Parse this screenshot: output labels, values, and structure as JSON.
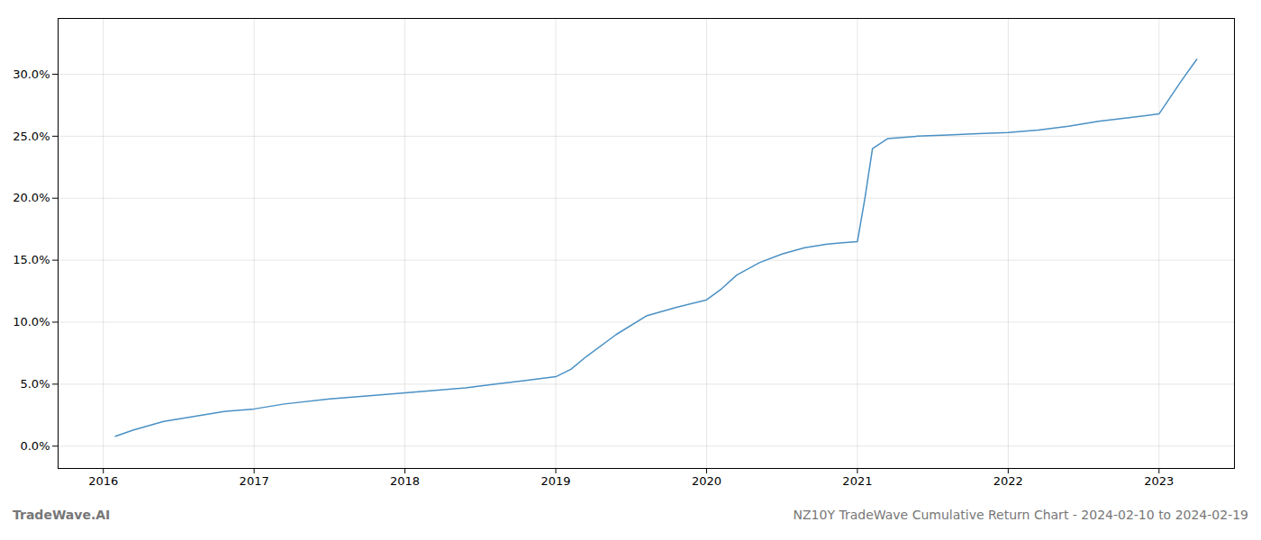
{
  "chart_data": {
    "type": "line",
    "annotations": [
      "TradeWave.AI",
      "NZ10Y TradeWave Cumulative Return Chart - 2024-02-10 to 2024-02-19"
    ],
    "x": [
      2016.08,
      2016.2,
      2016.4,
      2016.6,
      2016.8,
      2017.0,
      2017.2,
      2017.5,
      2017.8,
      2018.0,
      2018.2,
      2018.4,
      2018.6,
      2018.8,
      2019.0,
      2019.1,
      2019.2,
      2019.4,
      2019.6,
      2019.8,
      2020.0,
      2020.1,
      2020.2,
      2020.35,
      2020.5,
      2020.65,
      2020.8,
      2020.9,
      2021.0,
      2021.05,
      2021.1,
      2021.2,
      2021.4,
      2021.6,
      2021.8,
      2022.0,
      2022.2,
      2022.4,
      2022.6,
      2022.8,
      2023.0,
      2023.15,
      2023.25
    ],
    "values": [
      0.008,
      0.013,
      0.02,
      0.024,
      0.028,
      0.03,
      0.034,
      0.038,
      0.041,
      0.043,
      0.045,
      0.047,
      0.05,
      0.053,
      0.056,
      0.062,
      0.072,
      0.09,
      0.105,
      0.112,
      0.118,
      0.127,
      0.138,
      0.148,
      0.155,
      0.16,
      0.163,
      0.164,
      0.165,
      0.2,
      0.24,
      0.248,
      0.25,
      0.251,
      0.252,
      0.253,
      0.255,
      0.258,
      0.262,
      0.265,
      0.268,
      0.295,
      0.312
    ],
    "color": "#4a90c4",
    "xlim": [
      2015.7,
      2023.5
    ],
    "xticks": [
      2016,
      2017,
      2018,
      2019,
      2020,
      2021,
      2022,
      2023
    ],
    "ylim": [
      -0.018,
      0.345
    ],
    "yticks": [
      {
        "value": 0.0,
        "label": "0.0%"
      },
      {
        "value": 0.05,
        "label": "5.0%"
      },
      {
        "value": 0.1,
        "label": "10.0%"
      },
      {
        "value": 0.15,
        "label": "15.0%"
      },
      {
        "value": 0.2,
        "label": "20.0%"
      },
      {
        "value": 0.25,
        "label": "25.0%"
      },
      {
        "value": 0.3,
        "label": "30.0%"
      }
    ],
    "grid": true
  }
}
